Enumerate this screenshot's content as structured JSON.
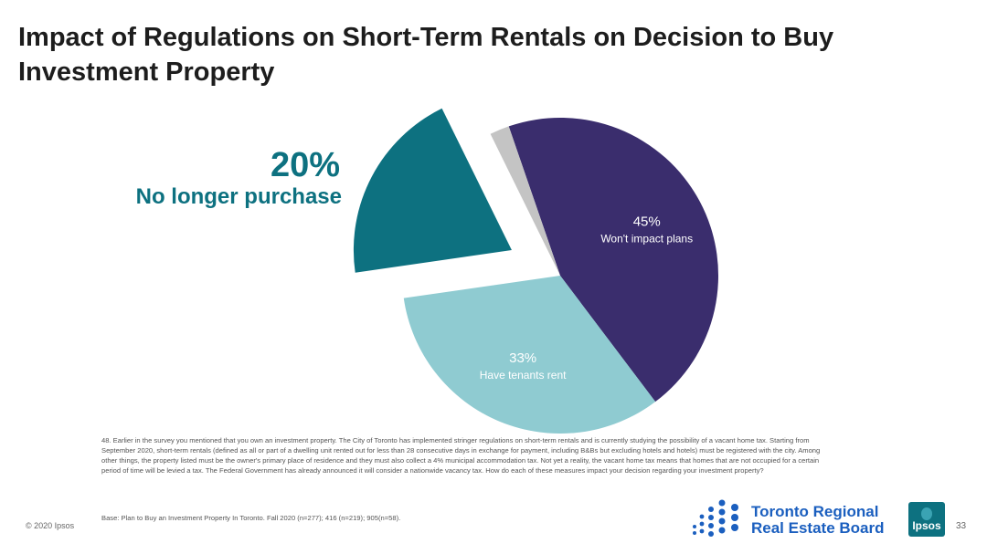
{
  "page": {
    "title": "Impact of Regulations on Short-Term Rentals on Decision to Buy Investment Property",
    "question": "48. Earlier in the survey you mentioned that you own an investment property. The City of Toronto has implemented stringer regulations on short-term rentals and is currently studying the possibility of a vacant home tax. Starting from September 2020, short-term rentals (defined as all or part of a dwelling unit rented out for less than 28 consecutive days in exchange for payment, including B&Bs but excluding hotels and hotels) must be registered with the city. Among other things, the property listed must be the owner's primary place of residence and they must also collect a 4% municipal accommodation tax. Not yet a reality, the vacant home tax means that homes that are not occupied for a certain period of time will be levied a tax. The Federal Government has already announced it will consider a nationwide vacancy tax. How do each of these measures impact your decision regarding your investment property?",
    "base": "Base: Plan to Buy an Investment Property In Toronto. Fall 2020 (n=277); 416 (n=219); 905(n=58).",
    "copyright": "© 2020 Ipsos",
    "page_number": "33",
    "logo_trreb": "Toronto Regional Real Estate Board",
    "logo_ipsos": "Ipsos"
  },
  "chart_data": {
    "type": "pie",
    "title": "Impact of Regulations on Short-Term Rentals on Decision to Buy Investment Property",
    "slices": [
      {
        "label": "Won't impact plans",
        "value": 45,
        "value_label": "45%",
        "color": "#3a2d6d"
      },
      {
        "label": "Have tenants rent",
        "value": 33,
        "value_label": "33%",
        "color": "#8fcbd1"
      },
      {
        "label": "No longer purchase",
        "value": 20,
        "value_label": "20%",
        "color": "#0d7180",
        "exploded": true
      },
      {
        "label": "",
        "value": 2,
        "value_label": "",
        "color": "#c4c4c4"
      }
    ]
  }
}
